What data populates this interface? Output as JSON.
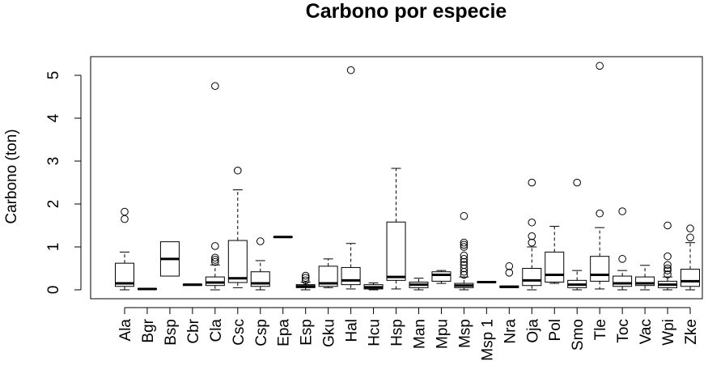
{
  "chart_data": {
    "type": "boxplot",
    "title": "Carbono por especie",
    "xlabel": "",
    "ylabel": "Carbono (ton)",
    "ylim": [
      -0.2,
      5.5
    ],
    "yticks": [
      0,
      1,
      2,
      3,
      4,
      5
    ],
    "grid": false,
    "categories": [
      "Ala",
      "Bgr",
      "Bsp",
      "Cbr",
      "Cla",
      "Csc",
      "Csp",
      "Epa",
      "Esp",
      "Gku",
      "Hal",
      "Hcu",
      "Hsp",
      "Man",
      "Mpu",
      "Msp",
      "Msp 1",
      "Nra",
      "Oja",
      "Pol",
      "Smo",
      "Tle",
      "Toc",
      "Vac",
      "Wpi",
      "Zke"
    ],
    "boxes": [
      {
        "name": "Ala",
        "whisker_low": 0.0,
        "q1": 0.08,
        "median": 0.15,
        "q3": 0.62,
        "whisker_high": 0.88,
        "outliers": [
          1.65,
          1.82
        ]
      },
      {
        "name": "Bgr",
        "whisker_low": 0.0,
        "q1": 0.01,
        "median": 0.02,
        "q3": 0.03,
        "whisker_high": 0.03,
        "outliers": []
      },
      {
        "name": "Bsp",
        "whisker_low": 0.32,
        "q1": 0.32,
        "median": 0.72,
        "q3": 1.12,
        "whisker_high": 1.12,
        "outliers": []
      },
      {
        "name": "Cbr",
        "whisker_low": 0.1,
        "q1": 0.1,
        "median": 0.12,
        "q3": 0.13,
        "whisker_high": 0.13,
        "outliers": []
      },
      {
        "name": "Cla",
        "whisker_low": 0.0,
        "q1": 0.1,
        "median": 0.17,
        "q3": 0.3,
        "whisker_high": 0.58,
        "outliers": [
          0.65,
          0.7,
          0.75,
          1.02,
          4.75
        ]
      },
      {
        "name": "Csc",
        "whisker_low": 0.05,
        "q1": 0.17,
        "median": 0.27,
        "q3": 1.15,
        "whisker_high": 2.33,
        "outliers": [
          2.78
        ]
      },
      {
        "name": "Csp",
        "whisker_low": 0.0,
        "q1": 0.08,
        "median": 0.15,
        "q3": 0.42,
        "whisker_high": 0.68,
        "outliers": [
          1.13
        ]
      },
      {
        "name": "Epa",
        "whisker_low": 1.22,
        "q1": 1.22,
        "median": 1.23,
        "q3": 1.24,
        "whisker_high": 1.24,
        "outliers": []
      },
      {
        "name": "Esp",
        "whisker_low": 0.0,
        "q1": 0.05,
        "median": 0.08,
        "q3": 0.12,
        "whisker_high": 0.18,
        "outliers": [
          0.22,
          0.28,
          0.33
        ]
      },
      {
        "name": "Gku",
        "whisker_low": 0.05,
        "q1": 0.08,
        "median": 0.15,
        "q3": 0.55,
        "whisker_high": 0.72,
        "outliers": []
      },
      {
        "name": "Hal",
        "whisker_low": 0.02,
        "q1": 0.12,
        "median": 0.22,
        "q3": 0.52,
        "whisker_high": 1.08,
        "outliers": [
          5.12
        ]
      },
      {
        "name": "Hcu",
        "whisker_low": 0.0,
        "q1": 0.02,
        "median": 0.06,
        "q3": 0.12,
        "whisker_high": 0.16,
        "outliers": []
      },
      {
        "name": "Hsp",
        "whisker_low": 0.02,
        "q1": 0.22,
        "median": 0.3,
        "q3": 1.58,
        "whisker_high": 2.83,
        "outliers": []
      },
      {
        "name": "Man",
        "whisker_low": 0.0,
        "q1": 0.05,
        "median": 0.12,
        "q3": 0.18,
        "whisker_high": 0.27,
        "outliers": []
      },
      {
        "name": "Mpu",
        "whisker_low": 0.15,
        "q1": 0.2,
        "median": 0.35,
        "q3": 0.42,
        "whisker_high": 0.45,
        "outliers": []
      },
      {
        "name": "Msp",
        "whisker_low": 0.0,
        "q1": 0.05,
        "median": 0.1,
        "q3": 0.15,
        "whisker_high": 0.3,
        "outliers": [
          0.35,
          0.42,
          0.5,
          0.58,
          0.65,
          0.72,
          0.8,
          1.0,
          1.05,
          1.1,
          1.72
        ]
      },
      {
        "name": "Msp 1",
        "whisker_low": 0.17,
        "q1": 0.17,
        "median": 0.18,
        "q3": 0.19,
        "whisker_high": 0.19,
        "outliers": []
      },
      {
        "name": "Nra",
        "whisker_low": 0.05,
        "q1": 0.05,
        "median": 0.07,
        "q3": 0.09,
        "whisker_high": 0.09,
        "outliers": [
          0.4,
          0.55
        ]
      },
      {
        "name": "Oja",
        "whisker_low": 0.0,
        "q1": 0.1,
        "median": 0.22,
        "q3": 0.5,
        "whisker_high": 1.0,
        "outliers": [
          1.1,
          1.25,
          1.57,
          2.5
        ]
      },
      {
        "name": "Pol",
        "whisker_low": 0.15,
        "q1": 0.18,
        "median": 0.35,
        "q3": 0.88,
        "whisker_high": 1.48,
        "outliers": []
      },
      {
        "name": "Smo",
        "whisker_low": 0.0,
        "q1": 0.05,
        "median": 0.12,
        "q3": 0.22,
        "whisker_high": 0.45,
        "outliers": [
          2.5
        ]
      },
      {
        "name": "Tle",
        "whisker_low": 0.02,
        "q1": 0.2,
        "median": 0.35,
        "q3": 0.78,
        "whisker_high": 1.45,
        "outliers": [
          1.78,
          5.22
        ]
      },
      {
        "name": "Toc",
        "whisker_low": 0.0,
        "q1": 0.08,
        "median": 0.15,
        "q3": 0.32,
        "whisker_high": 0.45,
        "outliers": [
          0.72,
          1.83
        ]
      },
      {
        "name": "Vac",
        "whisker_low": 0.0,
        "q1": 0.1,
        "median": 0.15,
        "q3": 0.3,
        "whisker_high": 0.57,
        "outliers": []
      },
      {
        "name": "Wpi",
        "whisker_low": 0.0,
        "q1": 0.05,
        "median": 0.12,
        "q3": 0.2,
        "whisker_high": 0.3,
        "outliers": [
          0.36,
          0.45,
          0.5,
          0.58,
          0.78,
          1.5
        ]
      },
      {
        "name": "Zke",
        "whisker_low": 0.0,
        "q1": 0.08,
        "median": 0.2,
        "q3": 0.48,
        "whisker_high": 1.1,
        "outliers": [
          1.22,
          1.43
        ]
      }
    ]
  }
}
